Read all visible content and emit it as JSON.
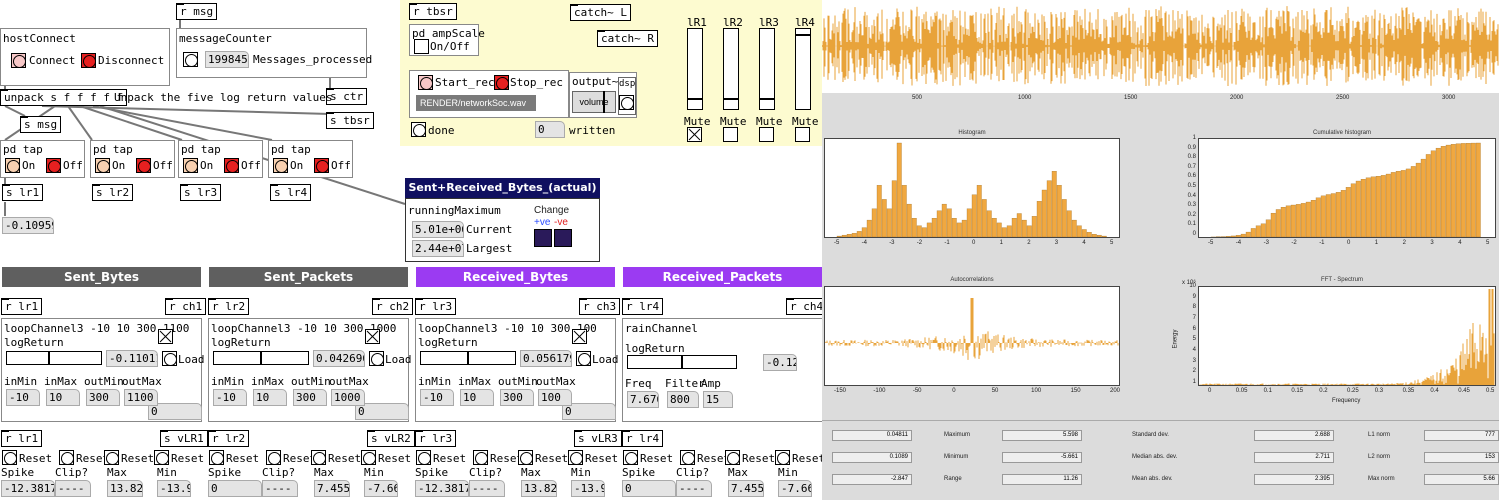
{
  "patch": {
    "host": {
      "title": "hostConnect",
      "connect": "Connect",
      "disconnect": "Disconnect"
    },
    "r_msg": "r msg",
    "counter": {
      "title": "messageCounter",
      "value": "199845",
      "label": "Messages_processed"
    },
    "s_ctr": "s ctr",
    "s_tbsr": "s tbsr",
    "unpack": "unpack s f f f f f",
    "unpack_comment": "Unpack the five log return values",
    "s_msg": "s msg",
    "taps": [
      {
        "title": "pd tap",
        "on": "On",
        "off": "Off",
        "send": "s lr1"
      },
      {
        "title": "pd tap",
        "on": "On",
        "off": "Off",
        "send": "s lr2"
      },
      {
        "title": "pd tap",
        "on": "On",
        "off": "Off",
        "send": "s lr3"
      },
      {
        "title": "pd tap",
        "on": "On",
        "off": "Off",
        "send": "s lr4"
      }
    ],
    "lr1_value": "-0.10959",
    "rec": {
      "r_tbsr": "r tbsr",
      "ampscale": "pd ampScale",
      "onoff": "On/Off",
      "catch_l": "catch~ L",
      "catch_r": "catch~ R",
      "start": "Start_rec",
      "stop": "Stop_rec",
      "output": "output~",
      "dsp": "dsp",
      "volume": "volume",
      "file": "RENDER/networkSoc.wav",
      "done": "done",
      "written_val": "0",
      "written": "written",
      "meters": [
        {
          "label": "lR1",
          "mute": "Mute",
          "muted": true,
          "level": 0.12
        },
        {
          "label": "lR2",
          "mute": "Mute",
          "muted": false,
          "level": 0.12
        },
        {
          "label": "lR3",
          "mute": "Mute",
          "muted": false,
          "level": 0.12
        },
        {
          "label": "lR4",
          "mute": "Mute",
          "muted": false,
          "level": 0.94
        }
      ]
    },
    "sentrecv": {
      "title": "Sent+Received_Bytes_(actual)",
      "running": "runningMaximum",
      "current_val": "5.01e+06",
      "current": "Current",
      "largest_val": "2.44e+07",
      "largest": "Largest",
      "change": "Change",
      "pos": "+ve",
      "neg": "-ve"
    },
    "channels": [
      {
        "header": "Sent_Bytes",
        "hcolor": "#5f5f5f",
        "r_lr": "r lr1",
        "r_ch": "r ch1",
        "loop": "loopChannel3 -10 10 300 1100",
        "sub": "logReturn",
        "val": "-0.11011",
        "load": "Load",
        "labels": [
          "inMin",
          "inMax",
          "outMin",
          "outMax"
        ],
        "vals": [
          "-10",
          "10",
          "300",
          "1100"
        ],
        "out": "0",
        "slider": 0.45,
        "showtog": true
      },
      {
        "header": "Sent_Packets",
        "hcolor": "#5f5f5f",
        "r_lr": "r lr2",
        "r_ch": "r ch2",
        "loop": "loopChannel3 -10 10 300 1000",
        "sub": "logReturn",
        "val": "0.042696",
        "load": "Load",
        "labels": [
          "inMin",
          "inMax",
          "outMin",
          "outMax"
        ],
        "vals": [
          "-10",
          "10",
          "300",
          "1000"
        ],
        "out": "0",
        "slider": 0.5,
        "showtog": true
      },
      {
        "header": "Received_Bytes",
        "hcolor": "#9b3bf2",
        "r_lr": "r lr3",
        "r_ch": "r ch3",
        "loop": "loopChannel3 -10 10 300 100",
        "sub": "logReturn",
        "val": "0.056179",
        "load": "Load",
        "labels": [
          "inMin",
          "inMax",
          "outMin",
          "outMax"
        ],
        "vals": [
          "-10",
          "10",
          "300",
          "100"
        ],
        "out": "0",
        "slider": 0.5,
        "showtog": true
      },
      {
        "header": "Received_Packets",
        "hcolor": "#9b3bf2",
        "r_lr": "r lr4",
        "r_ch": "r ch4",
        "loop": "rainChannel",
        "sub": "logReturn",
        "val": "-0.12",
        "labels": [
          "Freq",
          "Filter",
          "Amp"
        ],
        "vals": [
          "7.676",
          "800",
          "15"
        ],
        "slider": 0.5,
        "showtog": false
      }
    ],
    "vlr": [
      {
        "r": "r lr1",
        "s": "s vLR1",
        "reset": "Reset",
        "spike": "Spike",
        "clip": "Clip?",
        "max": "Max",
        "min": "Min",
        "spike_v": "-12.3817",
        "clip_v": "----",
        "max_v": "13.82",
        "min_v": "-13.9"
      },
      {
        "r": "r lr2",
        "s": "s vLR2",
        "reset": "Reset",
        "spike": "Spike",
        "clip": "Clip?",
        "max": "Max",
        "min": "Min",
        "spike_v": "0",
        "clip_v": "----",
        "max_v": "7.455",
        "min_v": "-7.66"
      },
      {
        "r": "r lr3",
        "s": "s vLR3",
        "reset": "Reset",
        "spike": "Spike",
        "clip": "Clip?",
        "max": "Max",
        "min": "Min",
        "spike_v": "-12.3817",
        "clip_v": "----",
        "max_v": "13.82",
        "min_v": "-13.9"
      },
      {
        "r": "r lr4",
        "s": "",
        "reset": "Reset",
        "spike": "Spike",
        "clip": "Clip?",
        "max": "Max",
        "min": "Min",
        "spike_v": "0",
        "clip_v": "----",
        "max_v": "7.455",
        "min_v": "-7.66"
      }
    ]
  },
  "chart_data": [
    {
      "type": "line",
      "x_ticks": [
        "500",
        "1000",
        "1500",
        "2000",
        "2500",
        "3000"
      ],
      "color": "#e8a33a"
    },
    {
      "type": "bar",
      "title": "Histogram",
      "x_ticks": [
        "-5",
        "-4",
        "-3",
        "-2",
        "-1",
        "0",
        "1",
        "2",
        "3",
        "4",
        "5"
      ],
      "values": [
        0.01,
        0.02,
        0.03,
        0.04,
        0.06,
        0.1,
        0.18,
        0.3,
        0.55,
        0.4,
        0.3,
        0.6,
        1.0,
        0.55,
        0.35,
        0.2,
        0.12,
        0.1,
        0.15,
        0.2,
        0.28,
        0.35,
        0.3,
        0.2,
        0.15,
        0.18,
        0.3,
        0.45,
        0.55,
        0.4,
        0.28,
        0.2,
        0.15,
        0.1,
        0.12,
        0.2,
        0.25,
        0.18,
        0.12,
        0.22,
        0.38,
        0.5,
        0.6,
        0.7,
        0.55,
        0.4,
        0.28,
        0.18,
        0.12,
        0.08,
        0.05,
        0.03,
        0.02,
        0.01
      ],
      "color": "#f0a840"
    },
    {
      "type": "bar",
      "title": "Cumulative histogram",
      "x_ticks": [
        "-5",
        "-4",
        "-3",
        "-2",
        "-1",
        "0",
        "1",
        "2",
        "3",
        "4",
        "5"
      ],
      "y_ticks": [
        "0",
        "0.1",
        "0.2",
        "0.3",
        "0.4",
        "0.5",
        "0.6",
        "0.7",
        "0.8",
        "0.9",
        "1"
      ],
      "ylim": [
        0,
        1
      ],
      "color": "#f0a840"
    },
    {
      "type": "line",
      "title": "Autocorrelations",
      "x_ticks": [
        "-150",
        "-100",
        "-50",
        "0",
        "50",
        "100",
        "150",
        "200"
      ],
      "color": "#e8a33a"
    },
    {
      "type": "line",
      "title": "FFT - Spectrum",
      "x_ticks": [
        "0",
        "0.05",
        "0.1",
        "0.15",
        "0.2",
        "0.25",
        "0.3",
        "0.35",
        "0.4",
        "0.45",
        "0.5"
      ],
      "xlabel": "Frequency",
      "ylabel": "Energy",
      "exp": "x 10⁶",
      "y_ticks": [
        "1",
        "2",
        "3",
        "4",
        "5",
        "6",
        "7",
        "8",
        "9",
        "10"
      ],
      "color": "#e8a33a"
    }
  ],
  "stats": [
    {
      "v1": "0.04811",
      "l1": "Maximum",
      "v2": "5.598",
      "l2": "Standard dev.",
      "v3": "2.688",
      "l3": "L1 norm",
      "v4": "777"
    },
    {
      "v1": "0.1089",
      "l1": "Minimum",
      "v2": "-5.661",
      "l2": "Median abs. dev.",
      "v3": "2.711",
      "l3": "L2 norm",
      "v4": "153"
    },
    {
      "v1": "-2.847",
      "l1": "Range",
      "v2": "11.26",
      "l2": "Mean abs. dev.",
      "v3": "2.395",
      "l3": "Max norm",
      "v4": "5.66"
    }
  ]
}
